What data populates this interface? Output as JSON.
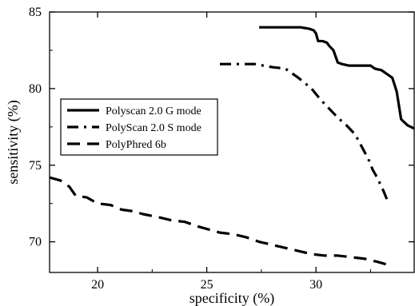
{
  "chart_data": {
    "type": "line",
    "title": "",
    "xlabel": "specificity (%)",
    "ylabel": "sensitivity (%)",
    "xlim": [
      17.8,
      34.5
    ],
    "ylim": [
      68,
      85
    ],
    "xticks": [
      20,
      25,
      30
    ],
    "yticks": [
      70,
      75,
      80,
      85
    ],
    "grid": false,
    "legend_position": "center-left",
    "series": [
      {
        "name": "Polyscan 2.0 G mode",
        "style": "solid",
        "color": "#000000",
        "x": [
          27.4,
          28.5,
          29.3,
          29.7,
          29.9,
          30.0,
          30.1,
          30.3,
          30.5,
          30.6,
          30.8,
          31.0,
          31.2,
          31.5,
          32.0,
          32.5,
          32.7,
          33.0,
          33.3,
          33.5,
          33.7,
          33.9,
          34.2,
          34.5
        ],
        "y": [
          84.0,
          84.0,
          84.0,
          83.9,
          83.8,
          83.6,
          83.1,
          83.1,
          83.0,
          82.8,
          82.5,
          81.7,
          81.6,
          81.5,
          81.5,
          81.5,
          81.3,
          81.2,
          80.9,
          80.7,
          79.8,
          78.0,
          77.6,
          77.4
        ]
      },
      {
        "name": "PolyScan 2.0 S mode",
        "style": "dash-dot",
        "color": "#000000",
        "x": [
          25.6,
          26.4,
          27.2,
          28.0,
          28.6,
          29.2,
          29.8,
          30.2,
          30.6,
          31.0,
          31.4,
          31.8,
          32.1,
          32.4,
          32.6,
          32.8,
          33.1,
          33.3
        ],
        "y": [
          81.6,
          81.6,
          81.6,
          81.4,
          81.3,
          80.7,
          80.0,
          79.3,
          78.7,
          78.1,
          77.6,
          77.0,
          76.2,
          75.4,
          74.7,
          74.2,
          73.3,
          72.6
        ]
      },
      {
        "name": "PolyPhred 6b",
        "style": "dashed",
        "color": "#000000",
        "x": [
          17.8,
          18.3,
          18.7,
          19.0,
          19.5,
          20.0,
          20.6,
          21.1,
          21.6,
          22.1,
          22.8,
          23.4,
          24.0,
          24.6,
          25.1,
          25.6,
          26.2,
          26.8,
          27.4,
          28.0,
          28.6,
          29.2,
          29.8,
          30.4,
          31.0,
          31.6,
          32.2,
          32.8,
          33.3
        ],
        "y": [
          74.2,
          74.0,
          73.6,
          73.0,
          72.9,
          72.5,
          72.4,
          72.1,
          72.0,
          71.8,
          71.6,
          71.4,
          71.3,
          71.0,
          70.8,
          70.6,
          70.5,
          70.3,
          70.0,
          69.8,
          69.6,
          69.4,
          69.2,
          69.1,
          69.1,
          69.0,
          68.9,
          68.7,
          68.5
        ]
      }
    ]
  }
}
